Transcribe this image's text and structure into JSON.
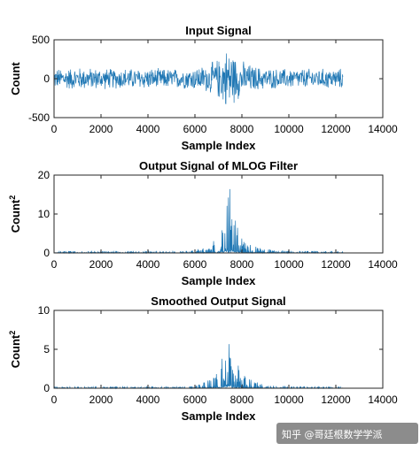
{
  "chart_data": [
    {
      "type": "line",
      "title": "Input Signal",
      "xlabel": "Sample Index",
      "ylabel": "Count",
      "xlim": [
        0,
        14000
      ],
      "ylim": [
        -500,
        500
      ],
      "xticks": [
        "0",
        "2000",
        "4000",
        "6000",
        "8000",
        "10000",
        "12000",
        "14000"
      ],
      "yticks": [
        "-500",
        "0",
        "500"
      ],
      "series": [
        {
          "x": [
            0,
            500,
            1000,
            1500,
            2000,
            2500,
            3000,
            3500,
            4000,
            4500,
            5000,
            5500,
            6000,
            6500,
            7000,
            7200,
            7400,
            7600,
            7800,
            8000,
            8500,
            9000,
            9500,
            10000,
            10500,
            11000,
            11500,
            12000,
            12300
          ],
          "y_envelope": [
            140,
            150,
            160,
            150,
            150,
            140,
            150,
            140,
            150,
            140,
            140,
            140,
            160,
            190,
            280,
            360,
            450,
            380,
            300,
            250,
            180,
            150,
            140,
            140,
            140,
            140,
            140,
            140,
            140
          ]
        }
      ],
      "color": "#1f77b4",
      "grid": false
    },
    {
      "type": "line",
      "title": "Output Signal of MLOG Filter",
      "xlabel": "Sample Index",
      "ylabel": "Count",
      "ylabel_superscript": "2",
      "xlim": [
        0,
        14000
      ],
      "ylim": [
        0,
        20
      ],
      "xticks": [
        "0",
        "2000",
        "4000",
        "6000",
        "8000",
        "10000",
        "12000",
        "14000"
      ],
      "yticks": [
        "0",
        "10",
        "20"
      ],
      "series": [
        {
          "x": [
            0,
            2000,
            4000,
            5500,
            6000,
            6500,
            7000,
            7200,
            7400,
            7500,
            7600,
            7800,
            8000,
            8500,
            9000,
            10000,
            11000,
            12000,
            12300
          ],
          "y_envelope": [
            0.5,
            0.5,
            0.5,
            0.5,
            0.8,
            1.5,
            4.5,
            9,
            14,
            17,
            12,
            7,
            4,
            2,
            1,
            0.6,
            0.5,
            0.5,
            0.5
          ]
        }
      ],
      "color": "#1f77b4",
      "grid": false
    },
    {
      "type": "line",
      "title": "Smoothed Output Signal",
      "xlabel": "Sample Index",
      "ylabel": "Count",
      "ylabel_superscript": "2",
      "xlim": [
        0,
        14000
      ],
      "ylim": [
        0,
        10
      ],
      "xticks": [
        "0",
        "2000",
        "4000",
        "6000",
        "8000",
        "10000",
        "12000",
        "14000"
      ],
      "yticks": [
        "0",
        "5",
        "10"
      ],
      "series": [
        {
          "x": [
            0,
            2000,
            4000,
            5500,
            6000,
            6500,
            7000,
            7200,
            7400,
            7500,
            7600,
            7800,
            8000,
            8500,
            9000,
            10000,
            11000,
            12000,
            12300
          ],
          "y_envelope": [
            0.2,
            0.2,
            0.2,
            0.2,
            0.4,
            0.9,
            2.5,
            5,
            7,
            8,
            6,
            3.5,
            2,
            0.9,
            0.5,
            0.3,
            0.2,
            0.2,
            0.2
          ]
        }
      ],
      "color": "#1f77b4",
      "grid": false
    }
  ],
  "watermark": "知乎 @哥廷根数学学派"
}
